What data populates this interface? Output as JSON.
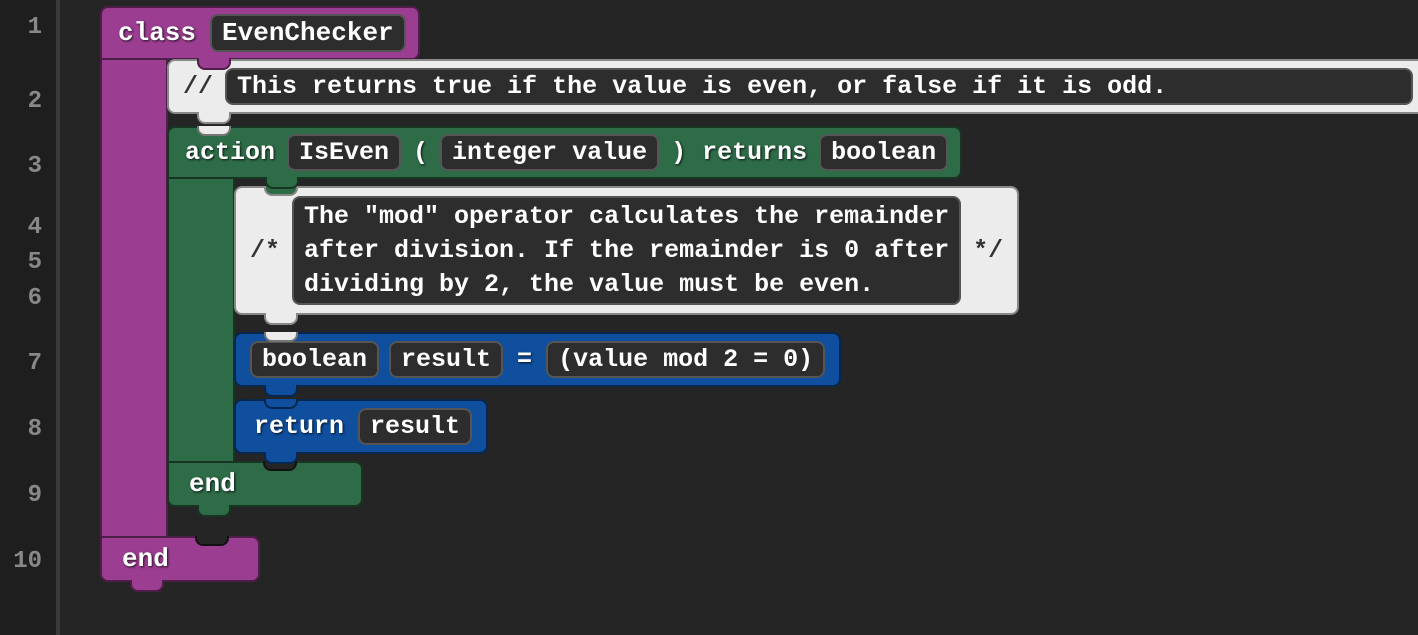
{
  "colors": {
    "background": "#252525",
    "gutter_bg": "#1e1e1e",
    "gutter_border": "#3a3a3a",
    "line_num": "#888888",
    "purple": "#9b3d91",
    "green": "#2e6b47",
    "blue": "#0f4f9e",
    "light": "#ececec",
    "pill_bg": "#2d2d2d",
    "pill_border": "#555555",
    "text": "#ffffff"
  },
  "typography": {
    "font_family": "Courier New, monospace",
    "font_weight": "bold",
    "block_fontsize": 25,
    "line_num_fontsize": 24
  },
  "line_numbers": [
    "1",
    "2",
    "3",
    "4",
    "5",
    "6",
    "7",
    "8",
    "9",
    "10"
  ],
  "class_block": {
    "keyword": "class",
    "name": "EvenChecker",
    "end": "end"
  },
  "comment_line": {
    "prefix": "//",
    "text": "This returns true if the value is even, or false if it is odd."
  },
  "action_block": {
    "keyword": "action",
    "name": "IsEven",
    "open_paren": "(",
    "param": "integer value",
    "close_paren": ")",
    "returns_kw": "returns",
    "return_type": "boolean",
    "end": "end"
  },
  "comment_multi": {
    "open": "/*",
    "text": "The \"mod\" operator calculates the remainder\nafter division. If the remainder is 0 after\ndividing by 2, the value must be even.",
    "close": "*/"
  },
  "decl": {
    "type": "boolean",
    "name": "result",
    "equals": "=",
    "expr": "(value mod 2 = 0)"
  },
  "ret": {
    "keyword": "return",
    "value": "result"
  }
}
